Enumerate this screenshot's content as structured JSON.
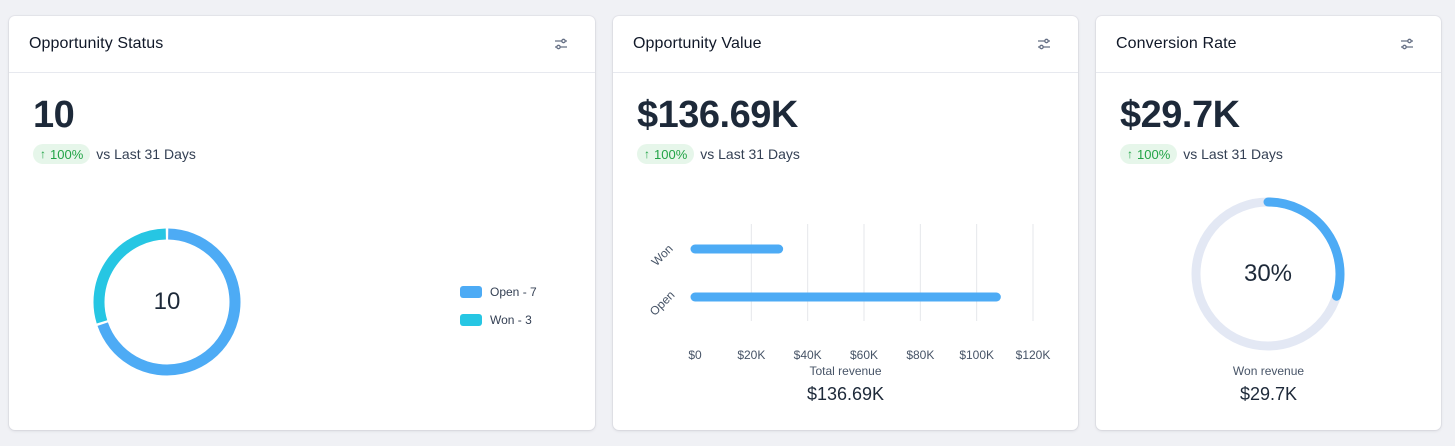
{
  "colors": {
    "open": "#4dabf5",
    "won": "#26c6e3",
    "bar": "#4dabf5",
    "gauge_fill": "#4dabf5",
    "gauge_track": "#e3e8f4",
    "trend_up": "#22a447"
  },
  "status_card": {
    "title": "Opportunity Status",
    "value": "10",
    "trend_pct": "100%",
    "trend_text": "vs Last 31 Days",
    "trend_icon": "arrow-up-icon",
    "filter_icon": "sliders-icon",
    "donut_center": "10",
    "legend": [
      {
        "label": "Open - 7"
      },
      {
        "label": "Won - 3"
      }
    ]
  },
  "value_card": {
    "title": "Opportunity Value",
    "value": "$136.69K",
    "trend_pct": "100%",
    "trend_text": "vs Last 31 Days",
    "trend_icon": "arrow-up-icon",
    "filter_icon": "sliders-icon",
    "total_label": "Total revenue",
    "total_value": "$136.69K"
  },
  "conversion_card": {
    "title": "Conversion Rate",
    "value": "$29.7K",
    "trend_pct": "100%",
    "trend_text": "vs Last 31 Days",
    "trend_icon": "arrow-up-icon",
    "filter_icon": "sliders-icon",
    "gauge_label": "30%",
    "gauge_fraction": 0.3,
    "won_label": "Won revenue",
    "won_value": "$29.7K"
  },
  "chart_data": [
    {
      "type": "pie",
      "categories": [
        "Open",
        "Won"
      ],
      "values": [
        7,
        3
      ],
      "legend": [
        "Open - 7",
        "Won - 3"
      ],
      "center_label": "10",
      "legend_position": "right"
    },
    {
      "type": "bar",
      "orientation": "horizontal",
      "categories": [
        "Won",
        "Open"
      ],
      "values": [
        29700,
        106990
      ],
      "x_ticks": [
        "$0",
        "$20K",
        "$40K",
        "$60K",
        "$80K",
        "$100K",
        "$120K"
      ],
      "xlim": [
        0,
        120000
      ],
      "grid": true,
      "xlabel": "",
      "ylabel": ""
    }
  ]
}
